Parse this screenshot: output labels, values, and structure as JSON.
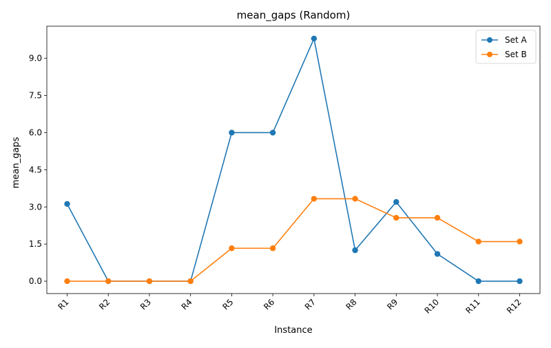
{
  "chart_data": {
    "type": "line",
    "title": "mean_gaps  (Random)",
    "xlabel": "Instance",
    "ylabel": "mean_gaps",
    "categories": [
      "R1",
      "R2",
      "R3",
      "R4",
      "R5",
      "R6",
      "R7",
      "R8",
      "R9",
      "R10",
      "R11",
      "R12"
    ],
    "ylim": [
      -0.5,
      10.3
    ],
    "yticks": [
      "0.0",
      "1.5",
      "3.0",
      "4.5",
      "6.0",
      "7.5",
      "9.0"
    ],
    "grid": false,
    "legend_position": "top-right",
    "series": [
      {
        "name": "Set A",
        "color": "#1f77b4",
        "marker": "circle",
        "values": [
          3.12,
          0.0,
          0.0,
          0.0,
          6.0,
          6.0,
          9.8,
          1.25,
          3.2,
          1.1,
          0.0,
          0.0
        ]
      },
      {
        "name": "Set B",
        "color": "#ff7f0e",
        "marker": "circle",
        "values": [
          0.0,
          0.0,
          0.0,
          0.0,
          1.33,
          1.33,
          3.33,
          3.33,
          2.56,
          2.56,
          1.6,
          1.6
        ]
      }
    ]
  }
}
